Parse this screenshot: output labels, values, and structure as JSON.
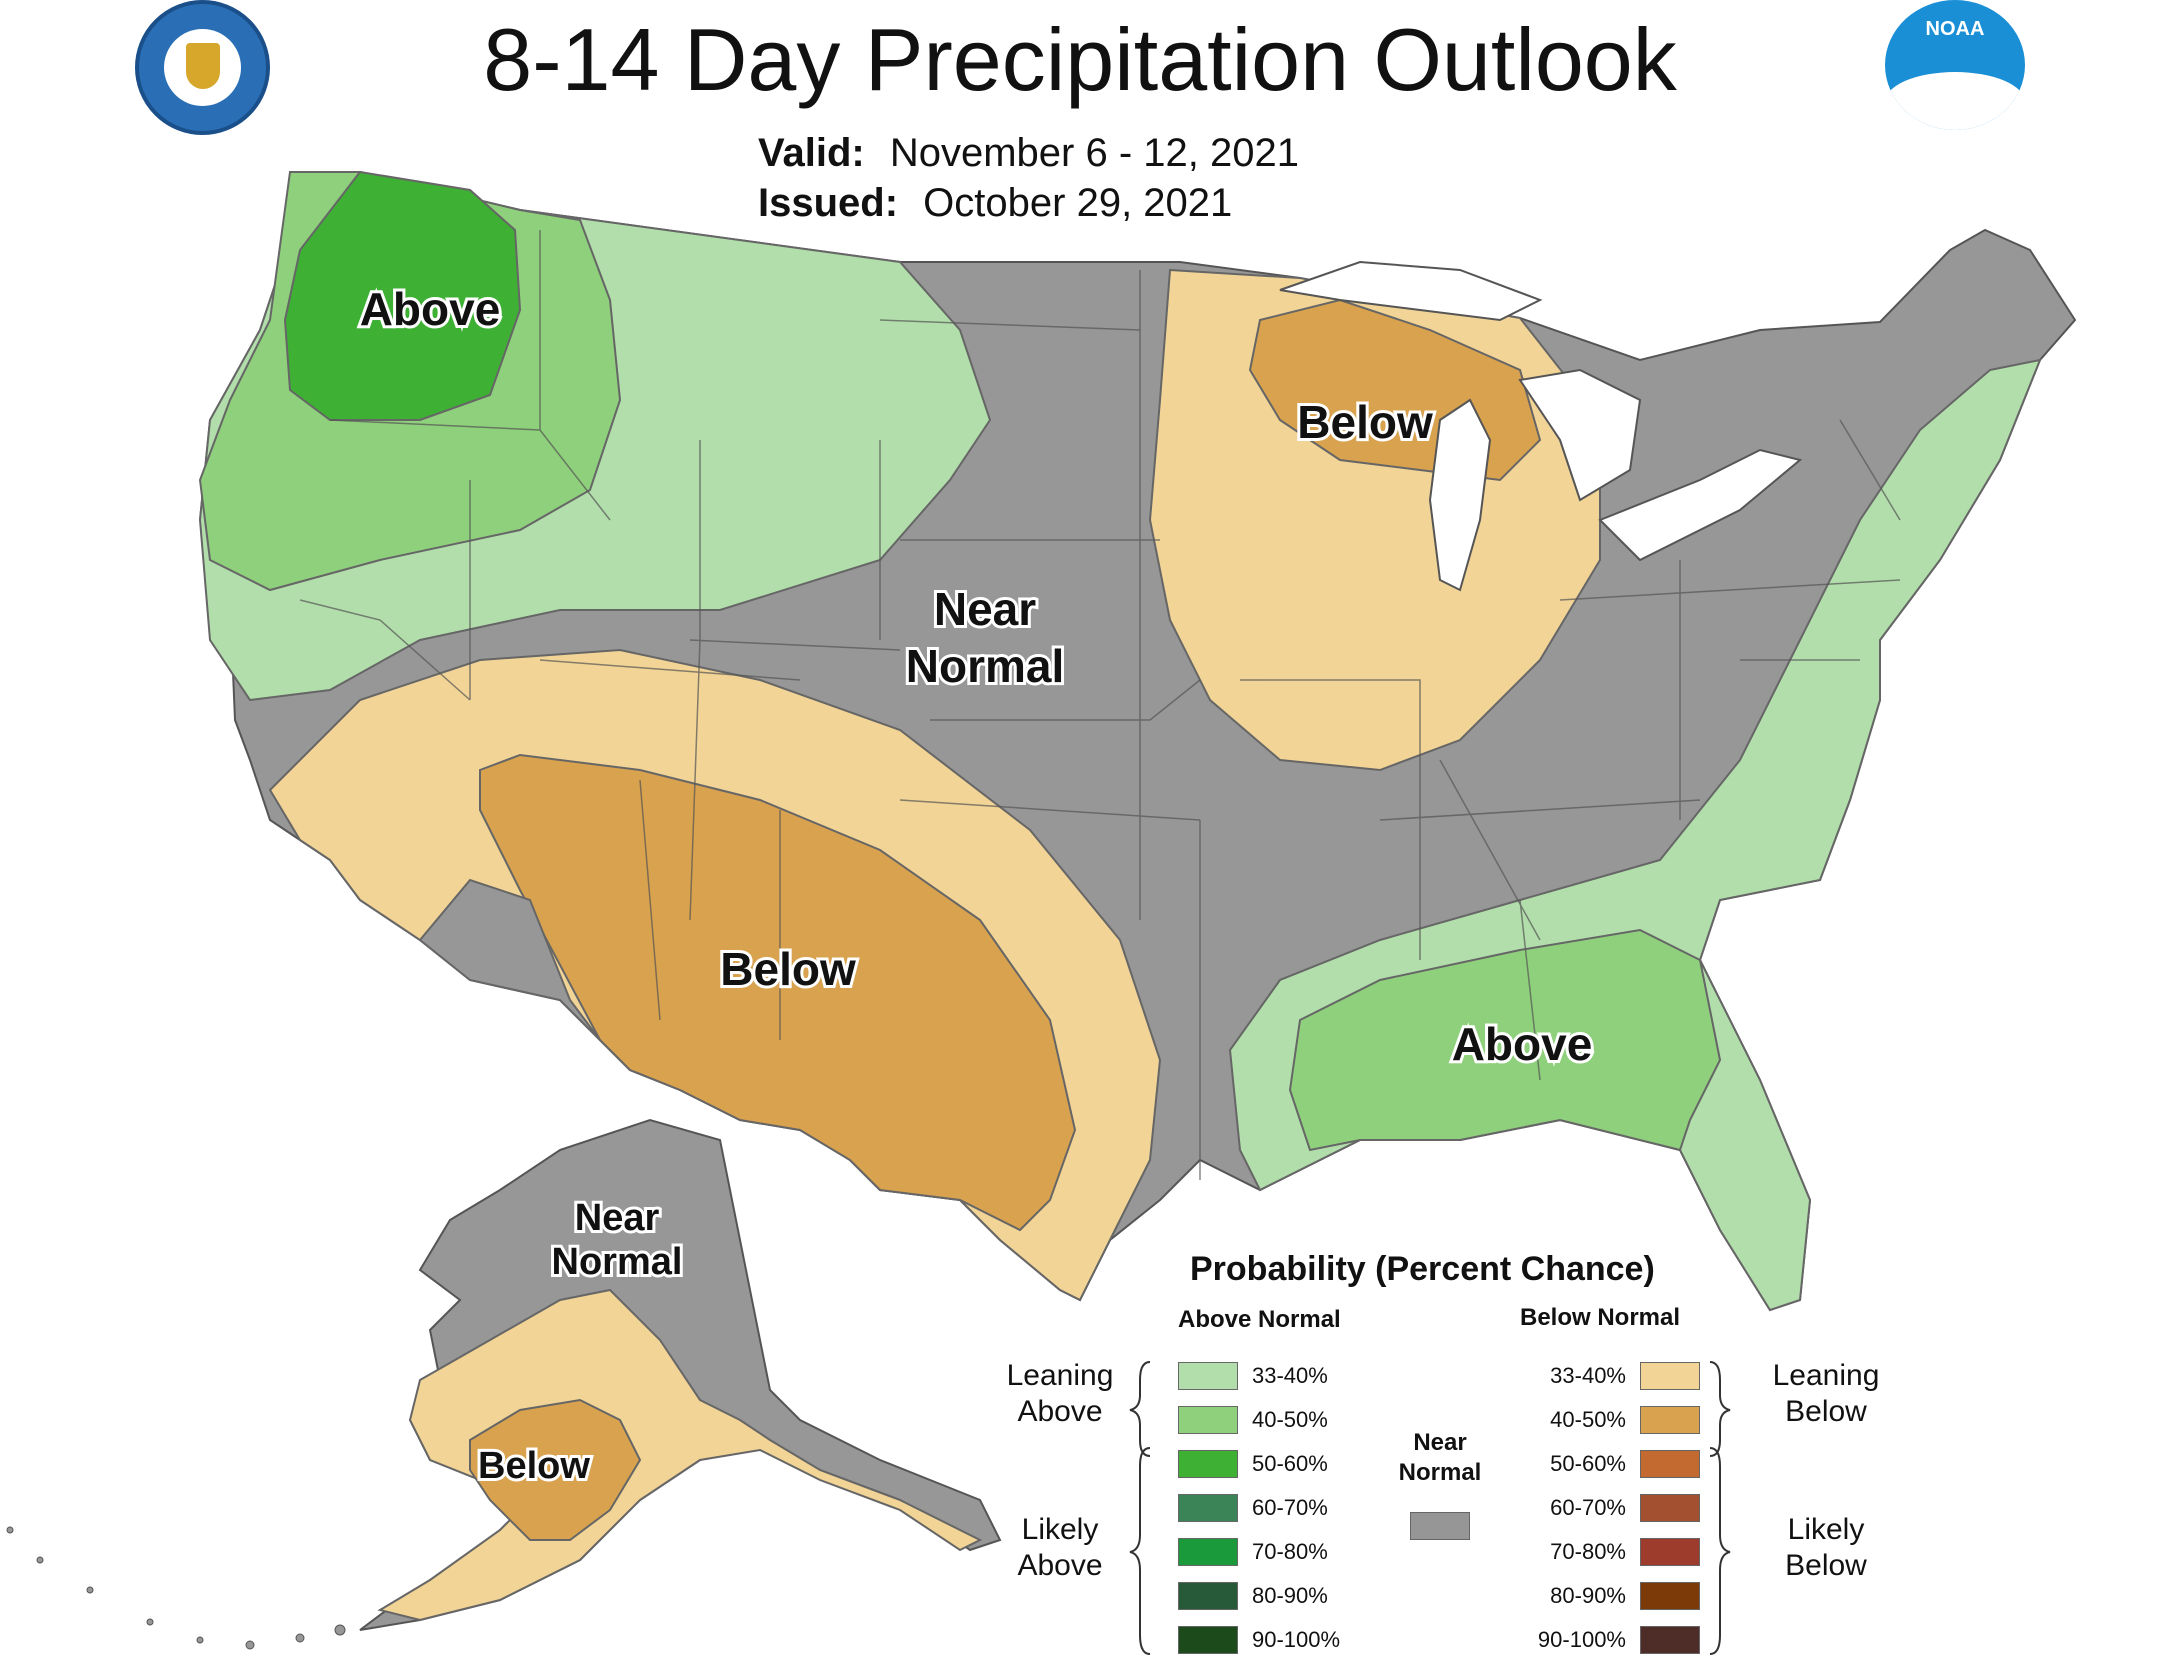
{
  "title": "8-14 Day Precipitation Outlook",
  "valid_label": "Valid:",
  "valid_value": "November 6 - 12, 2021",
  "issued_label": "Issued:",
  "issued_value": "October 29, 2021",
  "logos": {
    "left": "Department of Commerce seal",
    "right": "NOAA",
    "right_text": "NOAA"
  },
  "regions": {
    "nw_above": "Above",
    "central_near_1": "Near",
    "central_near_2": "Normal",
    "greatlakes_below": "Below",
    "southwest_below": "Below",
    "southeast_above": "Above",
    "ak_near_1": "Near",
    "ak_near_2": "Normal",
    "ak_below": "Below"
  },
  "legend": {
    "title": "Probability (Percent Chance)",
    "above_header": "Above Normal",
    "below_header": "Below Normal",
    "near_label_1": "Near",
    "near_label_2": "Normal",
    "leaning_above_1": "Leaning",
    "leaning_above_2": "Above",
    "likely_above_1": "Likely",
    "likely_above_2": "Above",
    "leaning_below_1": "Leaning",
    "leaning_below_2": "Below",
    "likely_below_1": "Likely",
    "likely_below_2": "Below",
    "above_items": [
      {
        "label": "33-40%",
        "color": "#b1deaa"
      },
      {
        "label": "40-50%",
        "color": "#8fd07c"
      },
      {
        "label": "50-60%",
        "color": "#3eb135"
      },
      {
        "label": "60-70%",
        "color": "#3a8457"
      },
      {
        "label": "70-80%",
        "color": "#1a9a3b"
      },
      {
        "label": "80-90%",
        "color": "#265a38"
      },
      {
        "label": "90-100%",
        "color": "#1c4a1a"
      }
    ],
    "below_items": [
      {
        "label": "33-40%",
        "color": "#f1d496"
      },
      {
        "label": "40-50%",
        "color": "#d9a24e"
      },
      {
        "label": "50-60%",
        "color": "#c36a30"
      },
      {
        "label": "60-70%",
        "color": "#a35030"
      },
      {
        "label": "70-80%",
        "color": "#9d3b2c"
      },
      {
        "label": "80-90%",
        "color": "#7c3a09"
      },
      {
        "label": "90-100%",
        "color": "#4e2c28"
      }
    ],
    "near_color": "#969696"
  }
}
